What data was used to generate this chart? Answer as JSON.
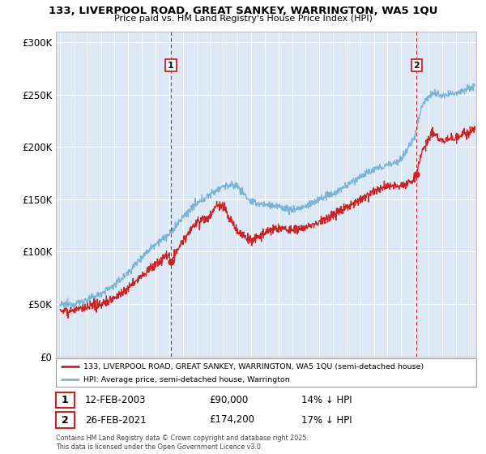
{
  "title_line1": "133, LIVERPOOL ROAD, GREAT SANKEY, WARRINGTON, WA5 1QU",
  "title_line2": "Price paid vs. HM Land Registry's House Price Index (HPI)",
  "ylim": [
    0,
    310000
  ],
  "yticks": [
    0,
    50000,
    100000,
    150000,
    200000,
    250000,
    300000
  ],
  "ytick_labels": [
    "£0",
    "£50K",
    "£100K",
    "£150K",
    "£200K",
    "£250K",
    "£300K"
  ],
  "hpi_color": "#7ab3d4",
  "property_color": "#cc2222",
  "background_color": "#dce8f5",
  "sale1_date": 2003.12,
  "sale1_price": 90000,
  "sale1_label": "1",
  "sale1_text": "12-FEB-2003",
  "sale1_price_text": "£90,000",
  "sale1_hpi_text": "14% ↓ HPI",
  "sale2_date": 2021.12,
  "sale2_price": 174200,
  "sale2_label": "2",
  "sale2_text": "26-FEB-2021",
  "sale2_price_text": "£174,200",
  "sale2_hpi_text": "17% ↓ HPI",
  "legend_property": "133, LIVERPOOL ROAD, GREAT SANKEY, WARRINGTON, WA5 1QU (semi-detached house)",
  "legend_hpi": "HPI: Average price, semi-detached house, Warrington",
  "footer": "Contains HM Land Registry data © Crown copyright and database right 2025.\nThis data is licensed under the Open Government Licence v3.0.",
  "hpi_knots_x": [
    1995,
    1996,
    1997,
    1998,
    1999,
    2000,
    2001,
    2002,
    2003,
    2004,
    2005,
    2006,
    2007,
    2008,
    2009,
    2010,
    2011,
    2012,
    2013,
    2014,
    2015,
    2016,
    2017,
    2018,
    2019,
    2020,
    2021,
    2021.5,
    2022,
    2022.5,
    2023,
    2024,
    2025.3
  ],
  "hpi_knots_y": [
    49000,
    50000,
    54000,
    60000,
    68000,
    80000,
    95000,
    108000,
    116000,
    133000,
    145000,
    155000,
    163000,
    163000,
    147000,
    145000,
    143000,
    140000,
    143000,
    150000,
    155000,
    163000,
    172000,
    178000,
    183000,
    188000,
    210000,
    240000,
    248000,
    252000,
    248000,
    252000,
    258000
  ],
  "prop_knots_x": [
    1995,
    1996,
    1997,
    1998,
    1999,
    2000,
    2001,
    2002,
    2003,
    2003.12,
    2004,
    2005,
    2006,
    2006.5,
    2007,
    2007.5,
    2008,
    2009,
    2010,
    2011,
    2012,
    2013,
    2014,
    2015,
    2016,
    2017,
    2018,
    2019,
    2020,
    2021,
    2021.12,
    2021.5,
    2022,
    2022.3,
    2023,
    2024,
    2025.3
  ],
  "prop_knots_y": [
    44000,
    44000,
    46000,
    50000,
    56000,
    65000,
    77000,
    88000,
    98000,
    90000,
    110000,
    128000,
    133000,
    145000,
    143000,
    130000,
    120000,
    110000,
    118000,
    123000,
    120000,
    123000,
    128000,
    135000,
    143000,
    150000,
    158000,
    163000,
    163000,
    168000,
    174200,
    195000,
    207000,
    215000,
    205000,
    210000,
    215000
  ]
}
